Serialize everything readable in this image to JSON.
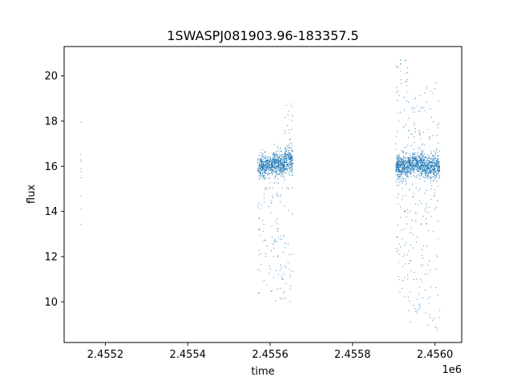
{
  "chart_data": {
    "type": "scatter",
    "title": "1SWASPJ081903.96-183357.5",
    "xlabel": "time",
    "ylabel": "flux",
    "x_offset_label": "1e6",
    "xlim": [
      2455100,
      2456065
    ],
    "ylim": [
      8.2,
      21.3
    ],
    "x_ticks": [
      2455200,
      2455400,
      2455600,
      2455800,
      2456000
    ],
    "x_tick_labels": [
      "2.4552",
      "2.4554",
      "2.4556",
      "2.4558",
      "2.4560"
    ],
    "y_ticks": [
      10,
      12,
      14,
      16,
      18,
      20
    ],
    "y_tick_labels": [
      "10",
      "12",
      "14",
      "16",
      "18",
      "20"
    ],
    "grid": false,
    "marker_color": "#1f77b4",
    "segments": [
      {
        "x_range": [
          2455140,
          2455142
        ],
        "core_flux": 16.0,
        "core_spread": 0.5,
        "tail_min": 12.7,
        "tail_max": 18.5,
        "count": 10,
        "tail_fraction": 0.6
      },
      {
        "x_range": [
          2455570,
          2455605
        ],
        "core_flux": 16.0,
        "core_spread": 0.45,
        "tail_min": 10.0,
        "tail_max": 16.7,
        "count": 420,
        "tail_fraction": 0.18
      },
      {
        "x_range": [
          2455605,
          2455635
        ],
        "core_flux": 16.1,
        "core_spread": 0.5,
        "tail_min": 10.0,
        "tail_max": 17.0,
        "count": 420,
        "tail_fraction": 0.16
      },
      {
        "x_range": [
          2455635,
          2455655
        ],
        "core_flux": 16.3,
        "core_spread": 0.6,
        "tail_min": 9.8,
        "tail_max": 18.8,
        "count": 260,
        "tail_fraction": 0.18
      },
      {
        "x_range": [
          2455905,
          2455935
        ],
        "core_flux": 16.0,
        "core_spread": 0.5,
        "tail_min": 10.2,
        "tail_max": 20.7,
        "count": 480,
        "tail_fraction": 0.22
      },
      {
        "x_range": [
          2455935,
          2455975
        ],
        "core_flux": 16.1,
        "core_spread": 0.5,
        "tail_min": 9.1,
        "tail_max": 19.2,
        "count": 560,
        "tail_fraction": 0.2
      },
      {
        "x_range": [
          2455975,
          2456012
        ],
        "core_flux": 16.0,
        "core_spread": 0.5,
        "tail_min": 8.7,
        "tail_max": 19.7,
        "count": 480,
        "tail_fraction": 0.2
      }
    ]
  }
}
